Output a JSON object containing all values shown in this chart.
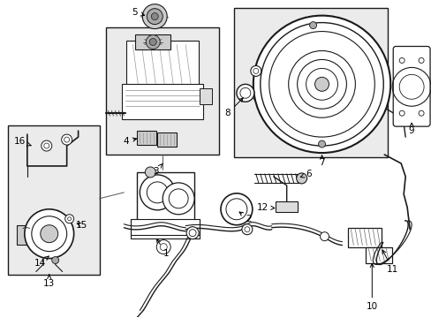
{
  "bg_color": "#ffffff",
  "line_color": "#1a1a1a",
  "fig_width": 4.89,
  "fig_height": 3.6,
  "dpi": 100,
  "inset_bg": "#ebebeb",
  "label_fs": 7.5
}
